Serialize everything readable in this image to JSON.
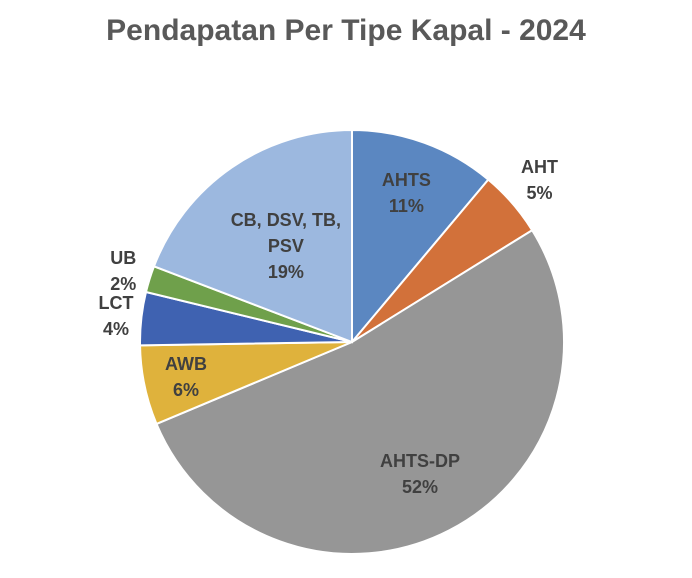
{
  "chart_data": {
    "type": "pie",
    "title": "Pendapatan Per Tipe Kapal - 2024",
    "categories": [
      "AHTS",
      "AHT",
      "AHTS-DP",
      "AWB",
      "LCT",
      "UB",
      "CB, DSV, TB, PSV"
    ],
    "values": [
      11,
      5,
      52,
      6,
      4,
      2,
      19
    ],
    "value_labels": [
      "11%",
      "5%",
      "52%",
      "6%",
      "4%",
      "2%",
      "19%"
    ],
    "colors": [
      "#5b87c1",
      "#d2713a",
      "#969696",
      "#dfb23c",
      "#3f62b1",
      "#6fa04b",
      "#9cb8df"
    ]
  }
}
